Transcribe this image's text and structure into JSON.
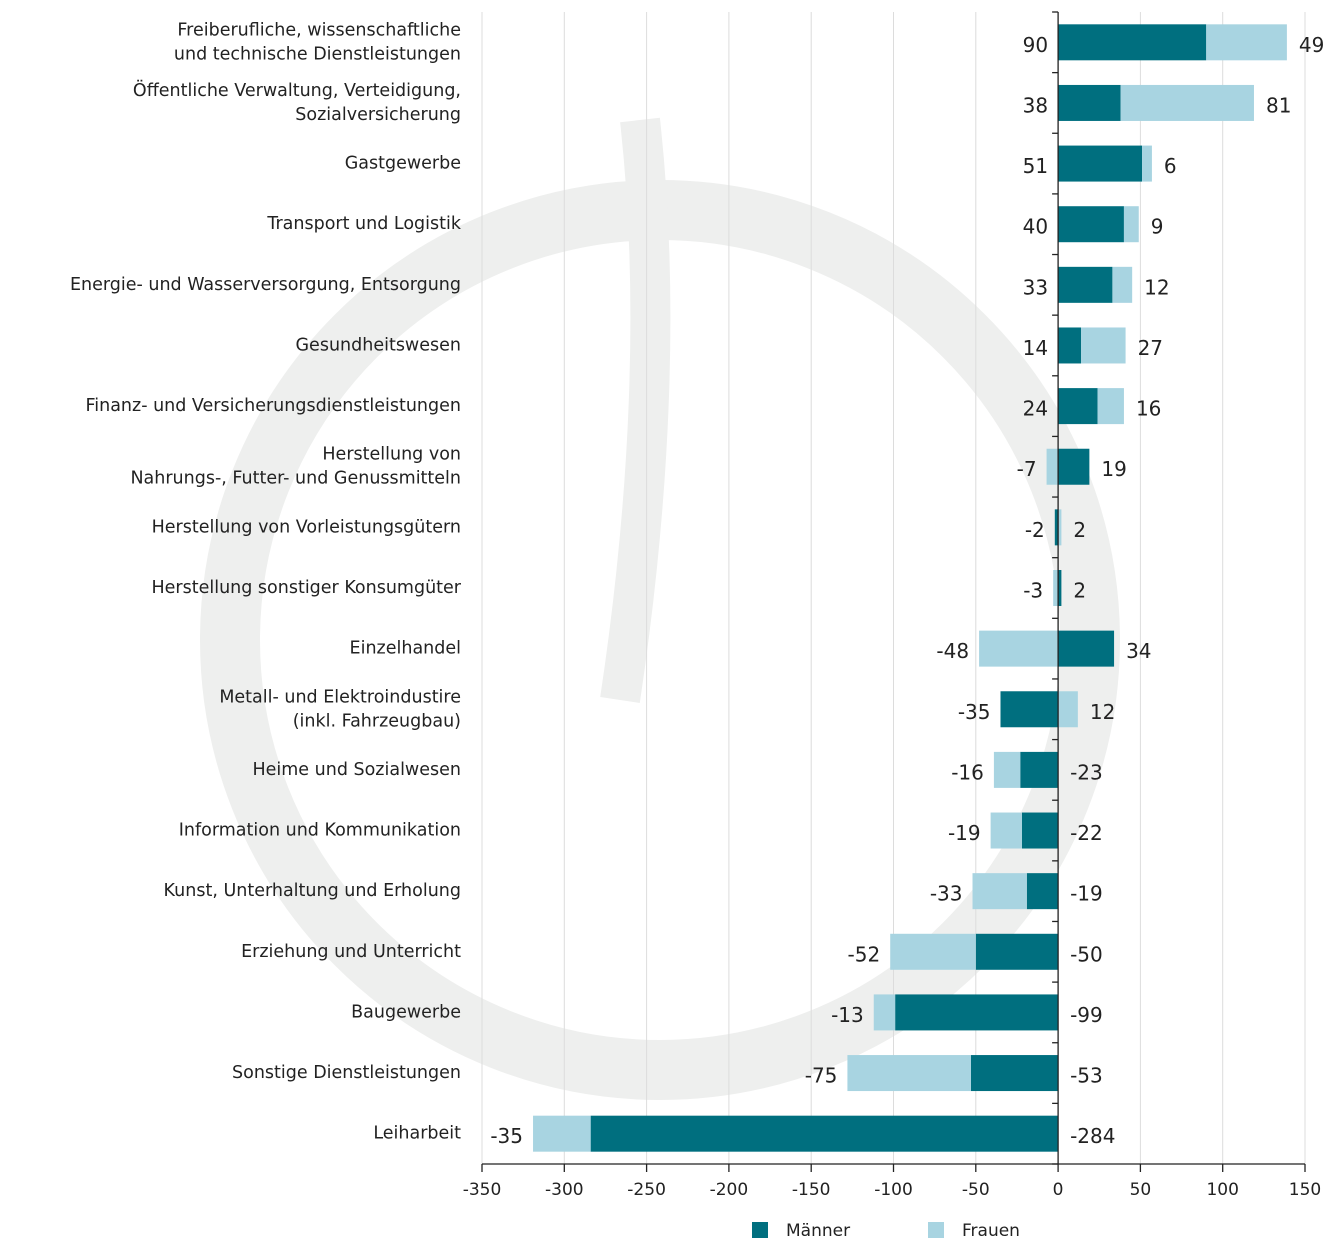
{
  "chart_data": {
    "type": "bar",
    "orientation": "horizontal",
    "stacked": true,
    "categories": [
      "Freiberufliche, wissenschaftliche\nund technische Dienstleistungen",
      "Öffentliche Verwaltung, Verteidigung,\nSozialversicherung",
      "Gastgewerbe",
      "Transport und Logistik",
      "Energie- und Wasserversorgung, Entsorgung",
      "Gesundheitswesen",
      "Finanz- und Versicherungsdienstleistungen",
      "Herstellung von\nNahrungs-, Futter- und Genussmitteln",
      "Herstellung von Vorleistungsgütern",
      "Herstellung sonstiger Konsumgüter",
      "Einzelhandel",
      "Metall- und Elektroindustire\n(inkl. Fahrzeugbau)",
      "Heime und Sozialwesen",
      "Information und Kommunikation",
      "Kunst, Unterhaltung und Erholung",
      "Erziehung und Unterricht",
      "Baugewerbe",
      "Sonstige Dienstleistungen",
      "Leiharbeit"
    ],
    "series": [
      {
        "name": "Männer",
        "color": "#006f7f",
        "values": [
          90,
          38,
          51,
          40,
          33,
          14,
          24,
          19,
          -2,
          2,
          34,
          -35,
          -23,
          -22,
          -19,
          -50,
          -99,
          -53,
          -284
        ]
      },
      {
        "name": "Frauen",
        "color": "#a8d4e1",
        "values": [
          49,
          81,
          6,
          9,
          12,
          27,
          16,
          -7,
          2,
          -3,
          -48,
          12,
          -16,
          -19,
          -33,
          -52,
          -13,
          -75,
          -35
        ]
      }
    ],
    "xlim": [
      -350,
      150
    ],
    "xticks": [
      -350,
      -300,
      -250,
      -200,
      -150,
      -100,
      -50,
      0,
      50,
      100,
      150
    ],
    "grid": true,
    "legend": "bottom"
  }
}
